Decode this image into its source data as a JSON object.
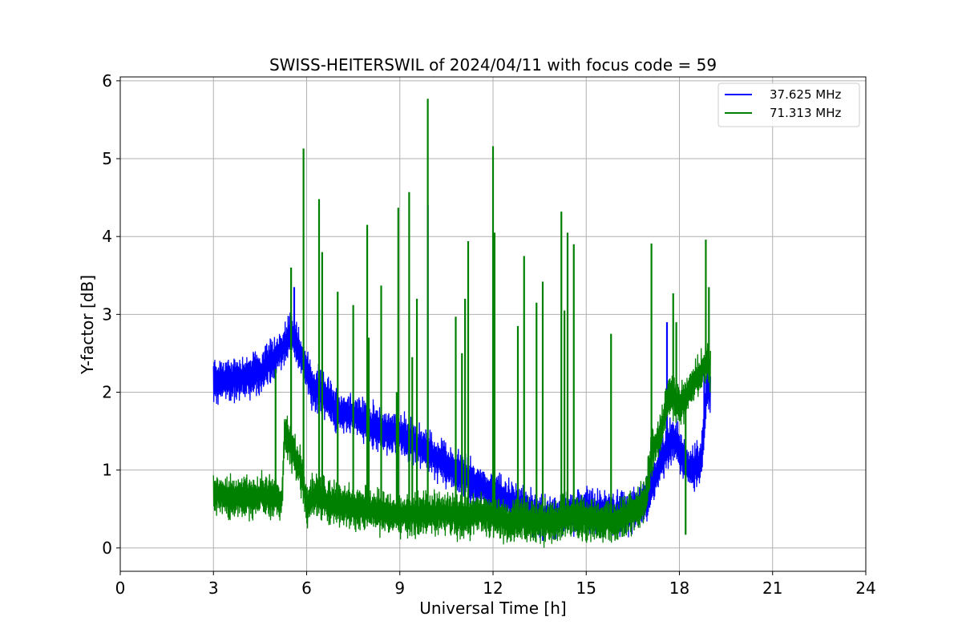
{
  "chart_data": {
    "type": "line",
    "title": "SWISS-HEITERSWIL of 2024/04/11 with focus code = 59",
    "xlabel": "Universal Time [h]",
    "ylabel": "Y-factor [dB]",
    "xlim": [
      0,
      24
    ],
    "ylim": [
      -0.3,
      6.05
    ],
    "xticks": [
      0,
      3,
      6,
      9,
      12,
      15,
      18,
      21,
      24
    ],
    "yticks": [
      0,
      1,
      2,
      3,
      4,
      5,
      6
    ],
    "grid": true,
    "legend_position": "top-right",
    "series": [
      {
        "name": "37.625 MHz",
        "color": "#0000ff",
        "noise": 0.25,
        "x": [
          3.0,
          3.5,
          4.0,
          4.5,
          5.0,
          5.3,
          5.5,
          5.7,
          5.9,
          6.2,
          6.5,
          7.0,
          7.5,
          8.0,
          8.5,
          9.0,
          9.5,
          10.0,
          10.5,
          11.0,
          11.5,
          12.0,
          12.5,
          13.0,
          13.5,
          14.0,
          14.5,
          15.0,
          15.5,
          16.0,
          16.5,
          16.9,
          17.2,
          17.5,
          17.8,
          18.1,
          18.4,
          18.7,
          18.9,
          19.0
        ],
        "y": [
          2.15,
          2.15,
          2.2,
          2.25,
          2.45,
          2.6,
          2.8,
          2.6,
          2.4,
          2.05,
          2.0,
          1.75,
          1.7,
          1.6,
          1.5,
          1.45,
          1.35,
          1.2,
          1.05,
          0.95,
          0.8,
          0.7,
          0.6,
          0.5,
          0.4,
          0.38,
          0.45,
          0.5,
          0.45,
          0.42,
          0.5,
          0.6,
          0.9,
          1.2,
          1.45,
          1.15,
          1.0,
          1.1,
          2.1,
          2.0
        ],
        "spikes": [
          [
            9.9,
            4.4
          ],
          [
            17.6,
            2.9
          ],
          [
            18.8,
            2.3
          ],
          [
            5.6,
            3.35
          ]
        ]
      },
      {
        "name": "71.313 MHz",
        "color": "#008000",
        "noise": 0.25,
        "x": [
          3.0,
          3.5,
          4.0,
          4.5,
          5.0,
          5.2,
          5.3,
          5.5,
          5.8,
          6.0,
          6.3,
          6.6,
          7.0,
          7.5,
          8.0,
          8.5,
          9.0,
          9.5,
          10.0,
          10.5,
          11.0,
          11.5,
          12.0,
          12.5,
          13.0,
          13.5,
          14.0,
          14.5,
          15.0,
          15.5,
          16.0,
          16.5,
          16.9,
          17.1,
          17.4,
          17.7,
          18.0,
          18.3,
          18.6,
          18.9,
          19.0
        ],
        "y": [
          0.7,
          0.65,
          0.65,
          0.68,
          0.65,
          0.6,
          1.5,
          1.3,
          1.0,
          0.55,
          0.7,
          0.6,
          0.55,
          0.5,
          0.5,
          0.45,
          0.42,
          0.42,
          0.45,
          0.45,
          0.4,
          0.45,
          0.4,
          0.35,
          0.35,
          0.32,
          0.35,
          0.4,
          0.38,
          0.35,
          0.35,
          0.45,
          0.6,
          1.2,
          1.5,
          2.0,
          1.8,
          2.0,
          2.2,
          2.4,
          2.3
        ],
        "spikes": [
          [
            5.0,
            2.3
          ],
          [
            5.5,
            3.6
          ],
          [
            5.9,
            5.13
          ],
          [
            6.4,
            4.48
          ],
          [
            6.5,
            3.8
          ],
          [
            7.0,
            3.29
          ],
          [
            7.5,
            3.12
          ],
          [
            7.95,
            4.15
          ],
          [
            8.0,
            2.7
          ],
          [
            8.4,
            3.37
          ],
          [
            8.9,
            2.0
          ],
          [
            8.95,
            4.37
          ],
          [
            9.3,
            4.57
          ],
          [
            9.4,
            2.45
          ],
          [
            9.55,
            3.2
          ],
          [
            9.9,
            5.77
          ],
          [
            10.8,
            2.97
          ],
          [
            11.0,
            2.5
          ],
          [
            11.1,
            3.2
          ],
          [
            11.2,
            3.94
          ],
          [
            12.0,
            5.16
          ],
          [
            12.05,
            4.05
          ],
          [
            12.8,
            2.85
          ],
          [
            13.0,
            3.75
          ],
          [
            13.4,
            3.15
          ],
          [
            13.6,
            3.42
          ],
          [
            14.2,
            4.32
          ],
          [
            14.3,
            3.05
          ],
          [
            14.4,
            4.05
          ],
          [
            14.6,
            3.9
          ],
          [
            15.8,
            2.75
          ],
          [
            17.1,
            3.91
          ],
          [
            17.8,
            3.27
          ],
          [
            17.9,
            2.9
          ],
          [
            18.2,
            0.17
          ],
          [
            18.85,
            3.96
          ],
          [
            18.95,
            3.35
          ]
        ]
      }
    ]
  }
}
